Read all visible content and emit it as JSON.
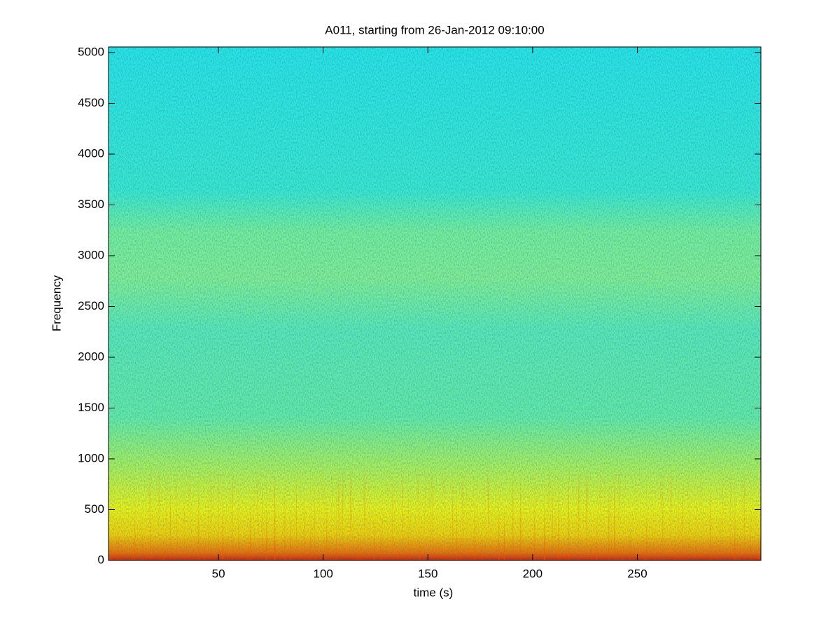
{
  "chart_data": {
    "type": "spectrogram",
    "title": "A011, starting from 26-Jan-2012 09:10:00",
    "xlabel": "time (s)",
    "ylabel": "Frequency",
    "xlim": [
      -2.5,
      309
    ],
    "xticks": [
      50,
      100,
      150,
      200,
      250
    ],
    "ylim": [
      0,
      5055
    ],
    "yticks": [
      0,
      500,
      1000,
      1500,
      2000,
      2500,
      3000,
      3500,
      4000,
      4500,
      5000
    ],
    "colormap": "jet",
    "grid": false
  }
}
